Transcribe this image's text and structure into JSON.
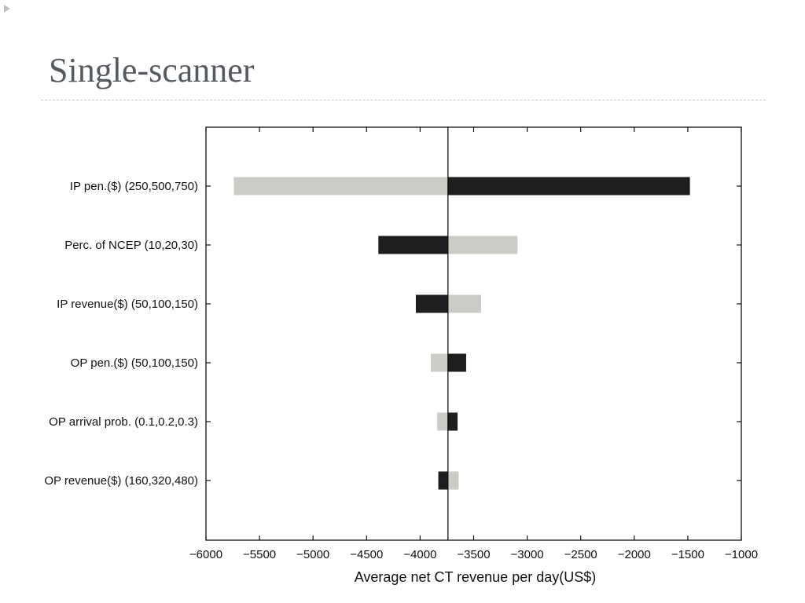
{
  "slide": {
    "title": "Single-scanner"
  },
  "chart_data": {
    "type": "tornado",
    "title": "",
    "xlabel": "Average net CT revenue per day(US$)",
    "ylabel": "",
    "xlim": [
      -6000,
      -1000
    ],
    "xticks": [
      -6000,
      -5500,
      -5000,
      -4500,
      -4000,
      -3500,
      -3000,
      -2500,
      -2000,
      -1500,
      -1000
    ],
    "xtick_labels": [
      "−6000",
      "−5500",
      "−5000",
      "−4500",
      "−4000",
      "−3500",
      "−3000",
      "−2500",
      "−2000",
      "−1500",
      "−1000"
    ],
    "baseline": -3740,
    "grid": false,
    "legend": "none",
    "colors": {
      "light": "#cdcbc6",
      "dark": "#1f1d1e"
    },
    "categories": [
      "IP pen.($) (250,500,750)",
      "Perc. of NCEP (10,20,30)",
      "IP revenue($) (50,100,150)",
      "OP pen.($) (50,100,150)",
      "OP arrival prob. (0.1,0.2,0.3)",
      "OP revenue($) (160,320,480)"
    ],
    "series": [
      {
        "color": "light",
        "values": [
          -5740,
          -3090,
          -3430,
          -3900,
          -3840,
          -3640
        ]
      },
      {
        "color": "dark",
        "values": [
          -1480,
          -4390,
          -4040,
          -3570,
          -3650,
          -3830
        ]
      }
    ]
  }
}
